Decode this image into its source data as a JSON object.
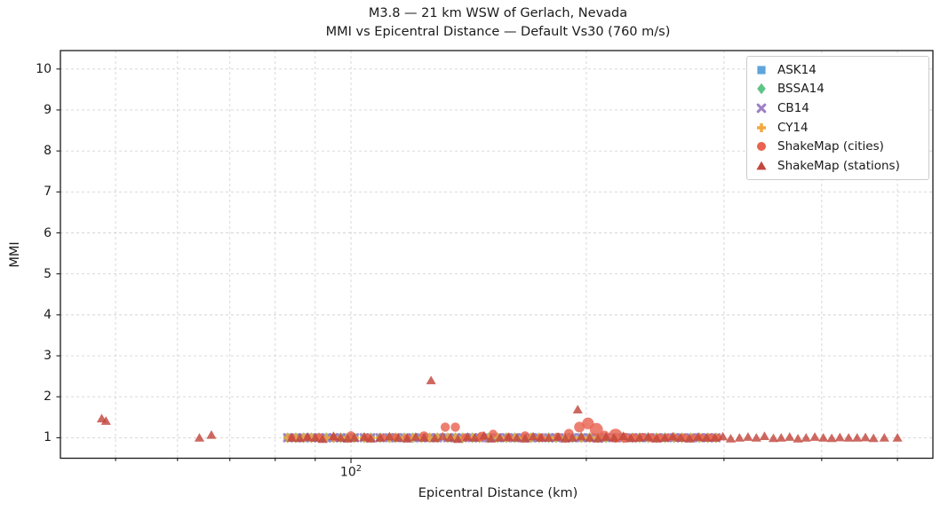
{
  "title": {
    "line1": "M3.8 — 21 km WSW of Gerlach, Nevada",
    "line2": "MMI vs Epicentral Distance — Default Vs30 (760 m/s)"
  },
  "axes": {
    "xlabel": "Epicentral Distance (km)",
    "ylabel": "MMI",
    "x_scale": "log",
    "xlim": [
      42.5,
      555
    ],
    "ylim": [
      0.5,
      10.45
    ],
    "y_ticks": [
      1,
      2,
      3,
      4,
      5,
      6,
      7,
      8,
      9,
      10
    ],
    "x_major_ticks": [
      100
    ],
    "x_major_tick_label_base": "10",
    "x_major_tick_label_exponent": "2",
    "x_minor_ticks": [
      50,
      60,
      70,
      80,
      90,
      200,
      300,
      400,
      500
    ],
    "grid": true,
    "grid_color": "#d4d4d4",
    "spine_color": "#1a1a1a"
  },
  "legend": {
    "entries": [
      {
        "label": "ASK14",
        "marker": "square",
        "color": "#5da5dc"
      },
      {
        "label": "BSSA14",
        "marker": "diamond",
        "color": "#5ec488"
      },
      {
        "label": "CB14",
        "marker": "x",
        "color": "#9d7fc6"
      },
      {
        "label": "CY14",
        "marker": "plus",
        "color": "#f2a93c"
      },
      {
        "label": "ShakeMap (cities)",
        "marker": "circle",
        "color": "#e96350"
      },
      {
        "label": "ShakeMap (stations)",
        "marker": "triangle",
        "color": "#c2473d"
      }
    ]
  },
  "chart_data": {
    "type": "scatter",
    "title": "M3.8 — 21 km WSW of Gerlach, Nevada / MMI vs Epicentral Distance — Default Vs30 (760 m/s)",
    "xlabel": "Epicentral Distance (km)",
    "ylabel": "MMI",
    "x_scale": "log",
    "xlim": [
      42.5,
      555
    ],
    "ylim": [
      0.5,
      10.45
    ],
    "legend_position": "upper right",
    "gmpe_distances_km": [
      83,
      85,
      87,
      89,
      91,
      93,
      95,
      97,
      99,
      101,
      104,
      106,
      109,
      112,
      114,
      117,
      120,
      123,
      126,
      129,
      133,
      136,
      139,
      143,
      146,
      150,
      154,
      158,
      162,
      166,
      170,
      174,
      179,
      183,
      188,
      192,
      197,
      202,
      207,
      212,
      218,
      223,
      229,
      234,
      240,
      246,
      252,
      259,
      265,
      272,
      279,
      286,
      293
    ],
    "series": [
      {
        "name": "ASK14",
        "marker": "square",
        "color": "#5da5dc",
        "mmi_at_gmpe_distances": 1.0
      },
      {
        "name": "BSSA14",
        "marker": "diamond",
        "color": "#5ec488",
        "mmi_at_gmpe_distances": 1.0
      },
      {
        "name": "CB14",
        "marker": "x",
        "color": "#9d7fc6",
        "mmi_at_gmpe_distances": 1.0
      },
      {
        "name": "CY14",
        "marker": "plus",
        "color": "#f2a93c",
        "mmi_at_gmpe_distances": 1.0
      },
      {
        "name": "ShakeMap (cities)",
        "marker": "circle",
        "color": "#e96350",
        "points": [
          [
            84,
            1.0,
            4.2
          ],
          [
            88,
            1.0,
            3.8
          ],
          [
            91,
            1.02,
            4.2
          ],
          [
            95,
            1.0,
            3.8
          ],
          [
            100,
            1.07,
            4.2
          ],
          [
            105,
            1.0,
            4.6
          ],
          [
            110,
            1.0,
            4.2
          ],
          [
            114,
            1.02,
            3.8
          ],
          [
            118,
            1.0,
            4.2
          ],
          [
            124,
            1.05,
            5.0
          ],
          [
            132,
            1.26,
            5.2
          ],
          [
            136,
            1.26,
            5.2
          ],
          [
            140,
            1.0,
            4.6
          ],
          [
            147,
            1.03,
            5.4
          ],
          [
            152,
            1.1,
            4.6
          ],
          [
            159,
            1.0,
            4.6
          ],
          [
            167,
            1.05,
            5.0
          ],
          [
            175,
            1.0,
            4.6
          ],
          [
            184,
            1.02,
            4.6
          ],
          [
            190,
            1.1,
            5.4
          ],
          [
            196,
            1.26,
            6.0
          ],
          [
            201,
            1.35,
            6.6
          ],
          [
            206,
            1.2,
            7.4
          ],
          [
            211,
            1.05,
            5.6
          ],
          [
            218,
            1.05,
            7.8
          ],
          [
            224,
            1.0,
            5.6
          ],
          [
            230,
            1.0,
            5.0
          ],
          [
            236,
            1.02,
            4.6
          ],
          [
            242,
            1.0,
            5.0
          ],
          [
            248,
            1.0,
            4.6
          ],
          [
            254,
            1.0,
            4.6
          ],
          [
            260,
            1.0,
            4.2
          ],
          [
            267,
            1.0,
            4.6
          ],
          [
            274,
            1.0,
            4.2
          ],
          [
            281,
            1.0,
            4.2
          ],
          [
            288,
            1.0,
            4.6
          ],
          [
            295,
            1.0,
            4.2
          ]
        ]
      },
      {
        "name": "ShakeMap (stations)",
        "marker": "triangle",
        "color": "#c2473d",
        "points": [
          [
            48.0,
            1.47
          ],
          [
            48.6,
            1.41
          ],
          [
            64,
            1.0
          ],
          [
            66.3,
            1.07
          ],
          [
            84,
            1.0
          ],
          [
            86,
            0.99
          ],
          [
            88,
            1.02
          ],
          [
            90,
            1.0
          ],
          [
            92,
            0.97
          ],
          [
            95,
            1.04
          ],
          [
            97,
            1.0
          ],
          [
            99,
            0.98
          ],
          [
            101,
            1.0
          ],
          [
            104,
            1.02
          ],
          [
            106,
            0.98
          ],
          [
            109,
            1.0
          ],
          [
            112,
            1.03
          ],
          [
            115,
            1.0
          ],
          [
            118,
            0.98
          ],
          [
            121,
            1.02
          ],
          [
            124,
            1.0
          ],
          [
            126.6,
            2.4
          ],
          [
            128,
            0.99
          ],
          [
            131,
            1.03
          ],
          [
            134,
            1.0
          ],
          [
            137,
            0.97
          ],
          [
            141,
            1.02
          ],
          [
            144,
            1.0
          ],
          [
            148,
            1.05
          ],
          [
            151,
            0.98
          ],
          [
            155,
            1.0
          ],
          [
            159,
            1.02
          ],
          [
            163,
            1.0
          ],
          [
            167,
            0.98
          ],
          [
            171,
            1.03
          ],
          [
            175,
            1.0
          ],
          [
            179,
            1.0
          ],
          [
            184,
            1.02
          ],
          [
            188,
            0.98
          ],
          [
            192,
            1.0
          ],
          [
            195,
            1.69
          ],
          [
            197,
            1.03
          ],
          [
            202,
            1.0
          ],
          [
            207,
            0.98
          ],
          [
            212,
            1.02
          ],
          [
            217,
            1.0
          ],
          [
            223,
            1.04
          ],
          [
            228,
            0.99
          ],
          [
            234,
            1.0
          ],
          [
            240,
            1.02
          ],
          [
            246,
            0.98
          ],
          [
            252,
            1.0
          ],
          [
            258,
            1.03
          ],
          [
            264,
            1.0
          ],
          [
            271,
            0.98
          ],
          [
            278,
            1.02
          ],
          [
            285,
            1.0
          ],
          [
            292,
            1.0
          ],
          [
            299,
            1.03
          ],
          [
            306,
            0.98
          ],
          [
            314,
            1.0
          ],
          [
            322,
            1.02
          ],
          [
            330,
            1.0
          ],
          [
            338,
            1.04
          ],
          [
            347,
            0.99
          ],
          [
            355,
            1.0
          ],
          [
            364,
            1.02
          ],
          [
            373,
            0.98
          ],
          [
            382,
            1.0
          ],
          [
            392,
            1.02
          ],
          [
            402,
            1.0
          ],
          [
            412,
            0.99
          ],
          [
            422,
            1.01
          ],
          [
            433,
            1.0
          ],
          [
            444,
            1.0
          ],
          [
            455,
            1.01
          ],
          [
            466,
            0.99
          ],
          [
            481,
            1.0
          ],
          [
            500,
            1.0
          ]
        ]
      }
    ]
  }
}
